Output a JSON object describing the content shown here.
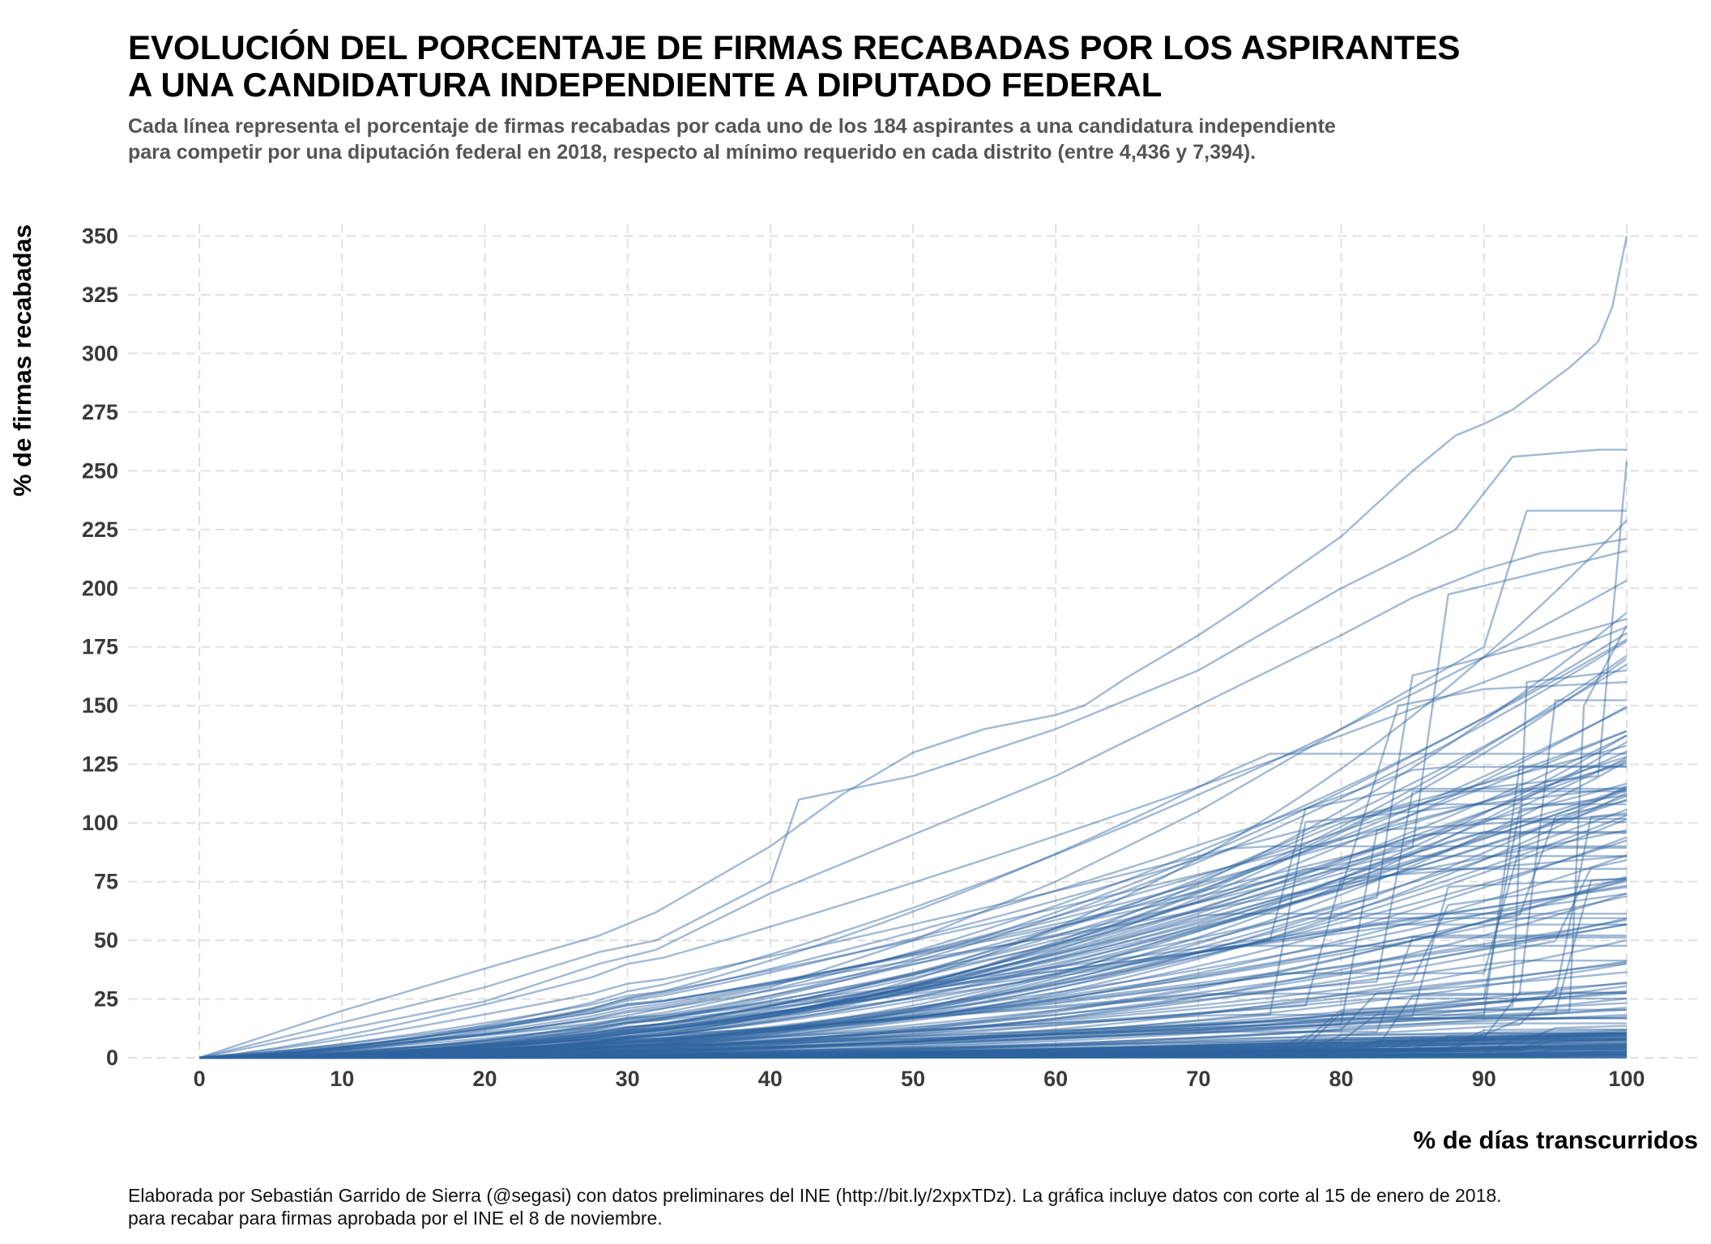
{
  "title_lines": [
    "EVOLUCIÓN DEL PORCENTAJE DE FIRMAS RECABADAS POR LOS ASPIRANTES",
    "A UNA CANDIDATURA INDEPENDIENTE A DIPUTADO FEDERAL"
  ],
  "subtitle_lines": [
    "Cada línea representa el porcentaje de firmas recabadas por cada uno de los 184 aspirantes a una candidatura independiente",
    "para competir por una diputación federal en 2018, respecto al mínimo requerido en cada distrito (entre 4,436 y 7,394)."
  ],
  "caption_lines": [
    "Elaborada por Sebastián Garrido de Sierra (@segasi) con datos preliminares del INE (http://bit.ly/2xpxTDz). La gráfica incluye datos con corte al 15 de enero de 2018.",
    "para recabar para firmas aprobada por el INE el 8 de noviembre."
  ],
  "chart_data": {
    "type": "line",
    "xlabel": "% de días transcurridos",
    "ylabel": "% de firmas recabadas",
    "xlim": [
      -5,
      105
    ],
    "ylim": [
      0,
      355
    ],
    "x_ticks": [
      0,
      10,
      20,
      30,
      40,
      50,
      60,
      70,
      80,
      90,
      100
    ],
    "y_ticks": [
      0,
      25,
      50,
      75,
      100,
      125,
      150,
      175,
      200,
      225,
      250,
      275,
      300,
      325,
      350
    ],
    "grid": true,
    "grid_style": "dashed",
    "line_color": "#2e64a0",
    "line_opacity": 0.45,
    "series_count": 184,
    "highlighted_series": [
      {
        "x": [
          0,
          10,
          20,
          28,
          32,
          40,
          45,
          50,
          55,
          60,
          62,
          65,
          70,
          73,
          76,
          80,
          85,
          88,
          90,
          92,
          94,
          96,
          98,
          99,
          100
        ],
        "y": [
          0,
          20,
          38,
          52,
          62,
          90,
          112,
          130,
          140,
          146,
          150,
          162,
          180,
          192,
          205,
          222,
          250,
          265,
          270,
          276,
          285,
          294,
          305,
          320,
          350
        ]
      },
      {
        "x": [
          0,
          10,
          20,
          28,
          32,
          40,
          42,
          50,
          60,
          70,
          80,
          85,
          88,
          92,
          96,
          98,
          100
        ],
        "y": [
          0,
          15,
          30,
          45,
          50,
          75,
          110,
          120,
          140,
          165,
          200,
          215,
          225,
          256,
          258,
          259,
          259
        ]
      },
      {
        "x": [
          0,
          10,
          20,
          28,
          32,
          40,
          50,
          60,
          70,
          80,
          85,
          90,
          94,
          98,
          100
        ],
        "y": [
          0,
          12,
          24,
          40,
          46,
          70,
          95,
          120,
          150,
          180,
          196,
          208,
          215,
          219,
          221
        ]
      },
      {
        "x": [
          0,
          20,
          30,
          40,
          50,
          60,
          70,
          80,
          90,
          93,
          100
        ],
        "y": [
          0,
          10,
          18,
          30,
          50,
          75,
          105,
          140,
          175,
          233,
          233
        ]
      },
      {
        "x": [
          0,
          20,
          30,
          40,
          50,
          60,
          70,
          80,
          90,
          98,
          100
        ],
        "y": [
          0,
          6,
          12,
          22,
          35,
          55,
          75,
          100,
          115,
          120,
          254
        ]
      },
      {
        "x": [
          0,
          30,
          40,
          50,
          60,
          70,
          80,
          84,
          90,
          100
        ],
        "y": [
          0,
          5,
          10,
          20,
          35,
          55,
          72,
          150,
          157,
          160
        ]
      },
      {
        "x": [
          0,
          30,
          50,
          70,
          85,
          92,
          93,
          100
        ],
        "y": [
          0,
          3,
          8,
          12,
          18,
          22,
          160,
          165
        ]
      },
      {
        "x": [
          0,
          30,
          50,
          70,
          80,
          90,
          96,
          97,
          100
        ],
        "y": [
          0,
          4,
          8,
          12,
          14,
          18,
          20,
          150,
          184
        ]
      }
    ],
    "y_max_observed": 350,
    "y_end_range": [
      0,
      350
    ]
  }
}
